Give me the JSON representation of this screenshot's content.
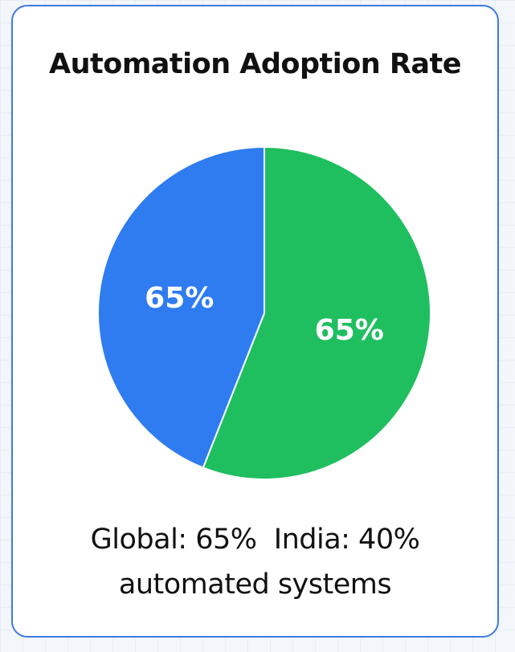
{
  "chart_data": {
    "type": "pie",
    "title": "Automation Adoption Rate",
    "slices": [
      {
        "label": "65%",
        "value": 44,
        "color": "#2f7cf0"
      },
      {
        "label": "65%",
        "value": 56,
        "color": "#1fbf60"
      }
    ]
  },
  "caption": {
    "line1": "Global: 65%  India: 40%",
    "line2": "automated systems"
  }
}
